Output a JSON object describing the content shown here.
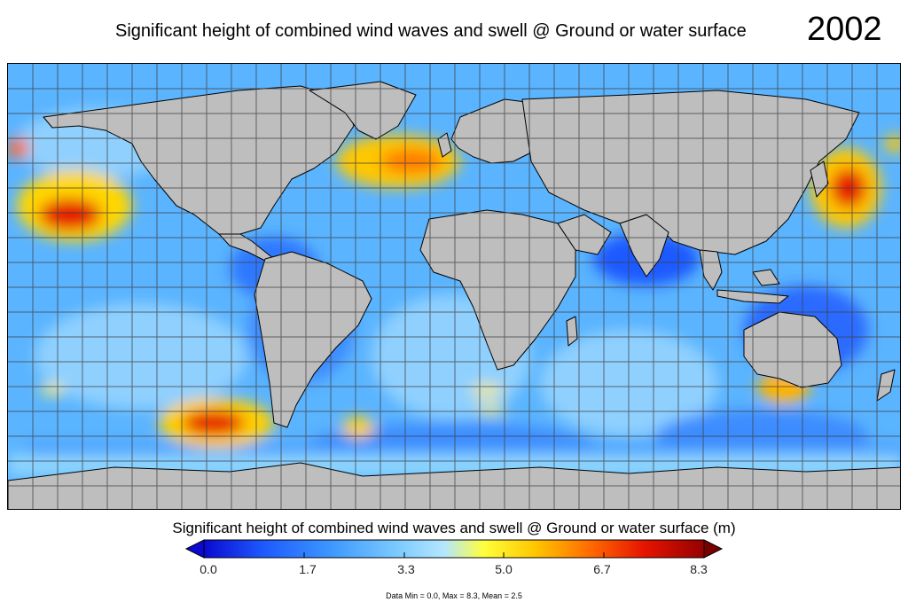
{
  "header": {
    "title": "Significant height of combined wind waves and swell @ Ground or water surface",
    "year": "2002"
  },
  "colorbar": {
    "title": "Significant height of combined wind waves and swell @ Ground or water surface (m)",
    "ticks": [
      "0.0",
      "1.7",
      "3.3",
      "5.0",
      "6.7",
      "8.3"
    ],
    "min": 0.0,
    "max": 8.3,
    "colors": [
      "#0a0ad0",
      "#1e5aff",
      "#3c96ff",
      "#78c8ff",
      "#b4e6ff",
      "#ffff3c",
      "#ffc800",
      "#ff6400",
      "#e61400",
      "#960000"
    ]
  },
  "stats": {
    "text": "Data Min = 0.0, Max = 8.3, Mean = 2.5"
  },
  "map": {
    "land_color": "#bebebe",
    "ocean_base_color": "#5ab4ff",
    "grid_color": "#404040",
    "projection": "equirectangular",
    "grid_spacing_deg": 10
  }
}
